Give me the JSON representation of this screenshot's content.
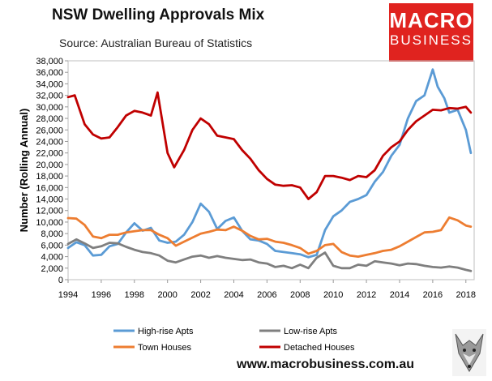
{
  "page": {
    "title": "NSW Dwelling Approvals Mix",
    "subtitle": "Source: Australian Bureau of Statistics",
    "logo_line1": "MACRO",
    "logo_line2": "BUSINESS",
    "url": "www.macrobusiness.com.au"
  },
  "chart_data": {
    "type": "line",
    "title": "NSW Dwelling Approvals Mix",
    "xlabel": "",
    "ylabel": "Number (Rolling Annual)",
    "xlim": [
      1994,
      2018.5
    ],
    "ylim": [
      0,
      38000
    ],
    "xticks": [
      1994,
      1996,
      1998,
      2000,
      2002,
      2004,
      2006,
      2008,
      2010,
      2012,
      2014,
      2016,
      2018
    ],
    "yticks": [
      0,
      2000,
      4000,
      6000,
      8000,
      10000,
      12000,
      14000,
      16000,
      18000,
      20000,
      22000,
      24000,
      26000,
      28000,
      30000,
      32000,
      34000,
      36000,
      38000
    ],
    "ytick_labels": [
      "0",
      "2,000",
      "4,000",
      "6,000",
      "8,000",
      "10,000",
      "12,000",
      "14,000",
      "16,000",
      "18,000",
      "20,000",
      "22,000",
      "24,000",
      "26,000",
      "28,000",
      "30,000",
      "32,000",
      "34,000",
      "36,000",
      "38,000"
    ],
    "grid": false,
    "legend": "bottom",
    "series": [
      {
        "name": "High-rise Apts",
        "color": "#5b9bd5",
        "x": [
          1994,
          1994.5,
          1995,
          1995.5,
          1996,
          1996.5,
          1997,
          1997.5,
          1998,
          1998.5,
          1999,
          1999.5,
          2000,
          2000.5,
          2001,
          2001.5,
          2002,
          2002.5,
          2003,
          2003.5,
          2004,
          2004.5,
          2005,
          2005.5,
          2006,
          2006.5,
          2007,
          2007.5,
          2008,
          2008.5,
          2009,
          2009.5,
          2010,
          2010.5,
          2011,
          2011.5,
          2012,
          2012.5,
          2013,
          2013.5,
          2014,
          2014.5,
          2015,
          2015.5,
          2016,
          2016.3,
          2016.7,
          2017,
          2017.5,
          2018,
          2018.3
        ],
        "values": [
          5500,
          6500,
          6000,
          4200,
          4300,
          5800,
          6200,
          8200,
          9800,
          8500,
          9000,
          6800,
          6400,
          6600,
          7800,
          10000,
          13200,
          11800,
          8800,
          10200,
          10800,
          8500,
          7000,
          6800,
          6200,
          5000,
          4800,
          4600,
          4400,
          3900,
          4300,
          8600,
          11000,
          12000,
          13500,
          14000,
          14700,
          17000,
          18700,
          21500,
          23400,
          28000,
          31000,
          32000,
          36500,
          33500,
          31500,
          29000,
          29500,
          26000,
          22000
        ]
      },
      {
        "name": "Low-rise Apts",
        "color": "#7f7f7f",
        "x": [
          1994,
          1994.5,
          1995,
          1995.5,
          1996,
          1996.5,
          1997,
          1997.5,
          1998,
          1998.5,
          1999,
          1999.5,
          2000,
          2000.5,
          2001,
          2001.5,
          2002,
          2002.5,
          2003,
          2003.5,
          2004,
          2004.5,
          2005,
          2005.5,
          2006,
          2006.5,
          2007,
          2007.5,
          2008,
          2008.5,
          2009,
          2009.5,
          2010,
          2010.5,
          2011,
          2011.5,
          2012,
          2012.5,
          2013,
          2013.5,
          2014,
          2014.5,
          2015,
          2015.5,
          2016,
          2016.5,
          2017,
          2017.5,
          2018,
          2018.3
        ],
        "values": [
          6200,
          7000,
          6300,
          5500,
          5800,
          6400,
          6300,
          5700,
          5200,
          4800,
          4600,
          4200,
          3300,
          3000,
          3500,
          4000,
          4200,
          3800,
          4100,
          3800,
          3600,
          3400,
          3500,
          3000,
          2800,
          2200,
          2400,
          2000,
          2600,
          2000,
          3800,
          4700,
          2400,
          2000,
          2000,
          2600,
          2400,
          3200,
          3000,
          2800,
          2500,
          2800,
          2700,
          2400,
          2200,
          2100,
          2300,
          2100,
          1700,
          1500
        ]
      },
      {
        "name": "Town Houses",
        "color": "#ed7d31",
        "x": [
          1994,
          1994.5,
          1995,
          1995.5,
          1996,
          1996.5,
          1997,
          1997.5,
          1998,
          1998.5,
          1999,
          1999.5,
          2000,
          2000.5,
          2001,
          2001.5,
          2002,
          2002.5,
          2003,
          2003.5,
          2004,
          2004.5,
          2005,
          2005.5,
          2006,
          2006.5,
          2007,
          2007.5,
          2008,
          2008.5,
          2009,
          2009.5,
          2010,
          2010.5,
          2011,
          2011.5,
          2012,
          2012.5,
          2013,
          2013.5,
          2014,
          2014.5,
          2015,
          2015.5,
          2016,
          2016.5,
          2017,
          2017.5,
          2018,
          2018.3
        ],
        "values": [
          10700,
          10600,
          9500,
          7500,
          7200,
          7800,
          7800,
          8200,
          8400,
          8600,
          8600,
          7800,
          7200,
          5900,
          6600,
          7300,
          8000,
          8300,
          8700,
          8600,
          9200,
          8500,
          7600,
          7000,
          7100,
          6600,
          6400,
          6000,
          5500,
          4500,
          5000,
          6000,
          6200,
          4800,
          4200,
          4000,
          4300,
          4600,
          5000,
          5200,
          5800,
          6600,
          7400,
          8200,
          8300,
          8600,
          10800,
          10300,
          9400,
          9200
        ]
      },
      {
        "name": "Detached Houses",
        "color": "#c00000",
        "x": [
          1994,
          1994.4,
          1995,
          1995.5,
          1996,
          1996.5,
          1997,
          1997.5,
          1998,
          1998.5,
          1999,
          1999.4,
          2000,
          2000.4,
          2001,
          2001.5,
          2002,
          2002.5,
          2003,
          2003.5,
          2004,
          2004.5,
          2005,
          2005.5,
          2006,
          2006.5,
          2007,
          2007.5,
          2008,
          2008.5,
          2009,
          2009.5,
          2010,
          2010.5,
          2011,
          2011.5,
          2012,
          2012.5,
          2013,
          2013.5,
          2014,
          2014.5,
          2015,
          2015.5,
          2016,
          2016.5,
          2017,
          2017.5,
          2018,
          2018.3
        ],
        "values": [
          31700,
          32000,
          27000,
          25200,
          24500,
          24700,
          26500,
          28500,
          29300,
          29000,
          28500,
          32500,
          22000,
          19500,
          22500,
          26000,
          28000,
          27000,
          25000,
          24700,
          24400,
          22500,
          21000,
          19000,
          17500,
          16500,
          16300,
          16400,
          16000,
          14000,
          15200,
          18000,
          18000,
          17700,
          17300,
          18000,
          17800,
          19000,
          21500,
          23000,
          24000,
          26000,
          27500,
          28500,
          29500,
          29400,
          29800,
          29700,
          30000,
          29000
        ]
      }
    ]
  }
}
